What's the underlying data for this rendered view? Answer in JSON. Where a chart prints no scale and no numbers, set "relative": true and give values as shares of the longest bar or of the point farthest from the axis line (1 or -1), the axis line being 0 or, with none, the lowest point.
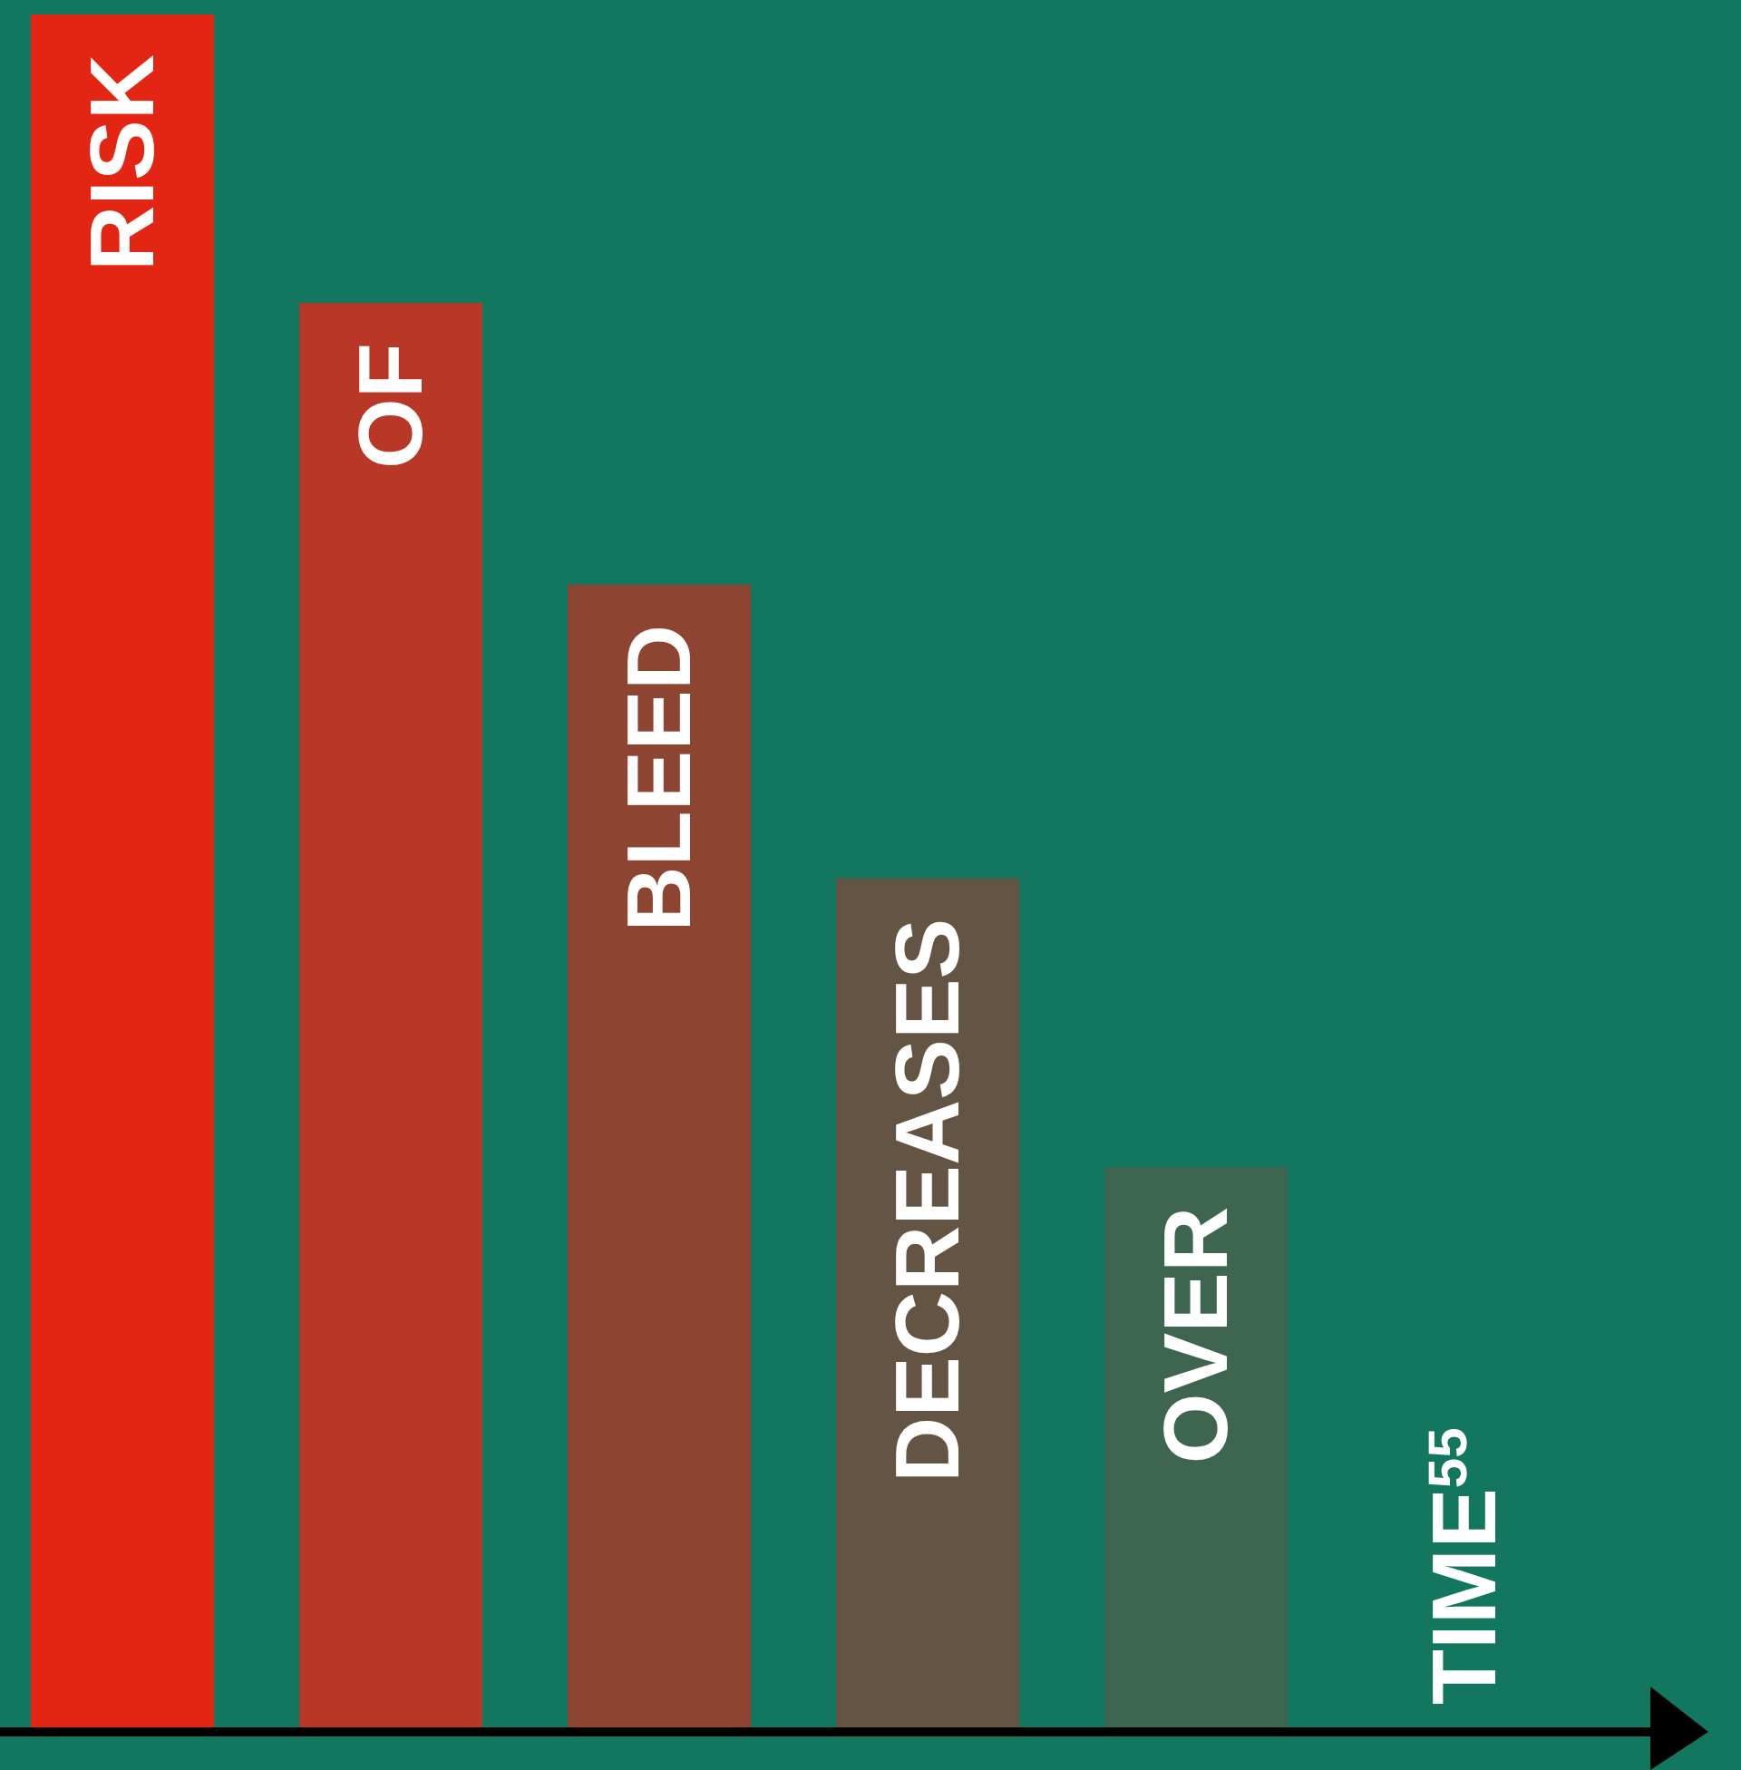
{
  "chart_data": {
    "type": "bar",
    "relative": true,
    "categories": [
      "RISK",
      "OF",
      "BLEED",
      "DECREASES",
      "OVER",
      "TIME$^{55}$"
    ],
    "values": [
      1,
      0.832,
      0.668,
      0.497,
      0.329,
      null
    ],
    "colors": [
      "#e32614",
      "#b83726",
      "#8d4431",
      "#645443",
      "#3d6550",
      "#13775f"
    ]
  }
}
